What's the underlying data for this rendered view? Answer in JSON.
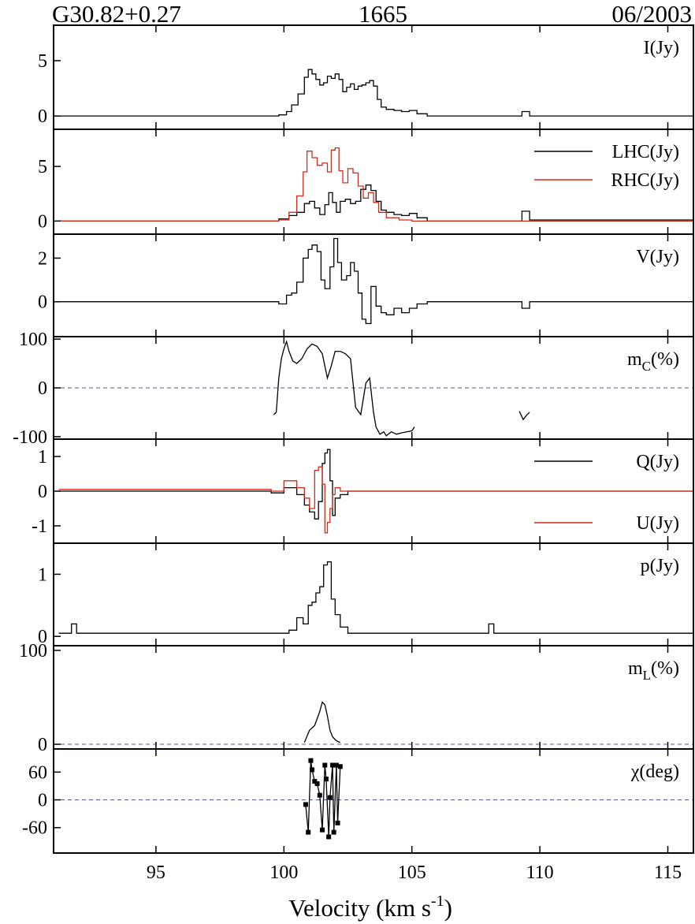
{
  "header": {
    "source": "G30.82+0.27",
    "frequency": "1665",
    "date": "06/2003"
  },
  "colors": {
    "black": "#000000",
    "red": "#d42a1a",
    "zero_line": "#4a5aa8"
  },
  "chart_data": {
    "type": "line",
    "x_axis": {
      "label_main": "Velocity (km s",
      "label_sup": "-1",
      "label_close": ")",
      "xlim": [
        91,
        116
      ],
      "ticks": [
        95,
        100,
        105,
        110,
        115
      ],
      "tick_labels": [
        "95",
        "100",
        "105",
        "110",
        "115"
      ]
    },
    "panels": [
      {
        "id": "I",
        "ylabel": "I(Jy)",
        "ylim": [
          -1.2,
          8.2
        ],
        "yticks": [
          0,
          5
        ],
        "ytick_labels": [
          "0",
          "5"
        ],
        "series": [
          {
            "color": "black",
            "step": true,
            "x": [
              91.2,
              99.8,
              100.1,
              100.3,
              100.55,
              100.8,
              100.95,
              101.1,
              101.25,
              101.4,
              101.55,
              101.7,
              101.85,
              102.0,
              102.15,
              102.3,
              102.45,
              102.6,
              102.75,
              102.9,
              103.05,
              103.2,
              103.35,
              103.5,
              103.65,
              103.8,
              104.0,
              104.3,
              104.6,
              104.9,
              105.2,
              105.6,
              109.0,
              109.3,
              109.6,
              116.0
            ],
            "values": [
              0.0,
              0.1,
              0.4,
              1.0,
              2.0,
              3.5,
              4.2,
              3.8,
              3.3,
              2.8,
              3.0,
              3.6,
              3.4,
              3.8,
              3.3,
              2.2,
              2.6,
              2.9,
              2.4,
              2.7,
              2.8,
              3.0,
              3.2,
              2.7,
              1.5,
              0.8,
              0.6,
              0.5,
              0.4,
              0.5,
              0.2,
              0.0,
              0.0,
              0.4,
              0.0,
              0.0
            ]
          }
        ]
      },
      {
        "id": "LHC_RHC",
        "ylim": [
          -1.2,
          8.4
        ],
        "yticks": [
          0,
          5
        ],
        "ytick_labels": [
          "0",
          "5"
        ],
        "legend": [
          {
            "label": "LHC(Jy)",
            "color": "black"
          },
          {
            "label": "RHC(Jy)",
            "color": "red"
          }
        ],
        "series": [
          {
            "name": "LHC(Jy)",
            "color": "black",
            "step": true,
            "x": [
              91.2,
              99.8,
              100.2,
              100.5,
              100.8,
              101.0,
              101.2,
              101.4,
              101.6,
              101.75,
              101.9,
              102.05,
              102.2,
              102.4,
              102.6,
              102.8,
              103.0,
              103.2,
              103.4,
              103.6,
              103.8,
              104.0,
              104.3,
              104.6,
              104.9,
              105.2,
              105.6,
              109.0,
              109.3,
              109.6,
              116.0
            ],
            "values": [
              0.0,
              0.2,
              0.5,
              0.8,
              1.6,
              1.8,
              1.2,
              0.6,
              1.5,
              2.6,
              1.7,
              0.8,
              1.8,
              2.0,
              1.6,
              1.8,
              2.9,
              3.3,
              2.8,
              1.8,
              1.0,
              0.8,
              0.6,
              0.5,
              0.7,
              0.3,
              0.0,
              0.0,
              0.9,
              0.1,
              0.0
            ]
          },
          {
            "name": "RHC(Jy)",
            "color": "red",
            "step": true,
            "x": [
              91.2,
              99.8,
              100.2,
              100.5,
              100.75,
              100.9,
              101.1,
              101.3,
              101.5,
              101.7,
              101.85,
              102.0,
              102.15,
              102.3,
              102.5,
              102.7,
              102.9,
              103.1,
              103.3,
              103.5,
              103.7,
              104.0,
              104.5,
              105.0,
              116.0
            ],
            "values": [
              0.0,
              0.1,
              0.8,
              2.3,
              4.5,
              6.4,
              5.8,
              5.1,
              5.3,
              4.5,
              6.5,
              6.7,
              4.6,
              3.5,
              4.8,
              4.4,
              3.2,
              2.1,
              2.6,
              1.7,
              0.8,
              0.3,
              0.1,
              0.0,
              0.0
            ]
          }
        ]
      },
      {
        "id": "V",
        "ylabel": "V(Jy)",
        "ylim": [
          -1.6,
          3.1
        ],
        "yticks": [
          0,
          2
        ],
        "ytick_labels": [
          "0",
          "2"
        ],
        "series": [
          {
            "color": "black",
            "step": true,
            "x": [
              91.2,
              99.8,
              100.1,
              100.3,
              100.5,
              100.75,
              100.95,
              101.1,
              101.3,
              101.45,
              101.6,
              101.8,
              101.95,
              102.1,
              102.25,
              102.45,
              102.6,
              102.75,
              102.9,
              103.05,
              103.2,
              103.4,
              103.6,
              103.8,
              104.0,
              104.3,
              104.6,
              104.9,
              105.2,
              105.6,
              109.0,
              109.3,
              109.6,
              116.0
            ],
            "values": [
              0.0,
              -0.1,
              0.3,
              0.4,
              0.9,
              2.0,
              2.4,
              2.6,
              2.3,
              1.0,
              0.6,
              1.6,
              2.9,
              1.8,
              1.0,
              1.2,
              1.8,
              1.4,
              0.4,
              -0.8,
              -1.0,
              0.7,
              -0.2,
              -0.5,
              -0.6,
              -0.3,
              -0.5,
              -0.3,
              -0.1,
              0.0,
              0.0,
              -0.3,
              0.0,
              0.0
            ]
          }
        ]
      },
      {
        "id": "mc",
        "ylabel_main": "m",
        "ylabel_sub": "C",
        "ylabel_tail": "(%)",
        "ylim": [
          -105,
          105
        ],
        "yticks": [
          -100,
          0,
          100
        ],
        "ytick_labels": [
          "-100",
          "0",
          "100"
        ],
        "zero_line": true,
        "series": [
          {
            "color": "black",
            "step": false,
            "x": [
              99.6,
              99.7,
              99.8,
              99.9,
              100.0,
              100.1,
              100.2,
              100.35,
              100.5,
              100.7,
              100.9,
              101.1,
              101.3,
              101.5,
              101.7,
              101.85,
              102.0,
              102.2,
              102.4,
              102.6,
              102.8,
              103.0,
              103.2,
              103.35,
              103.5,
              103.6,
              103.75,
              103.9,
              104.0,
              104.2,
              104.4,
              104.6,
              104.8,
              105.0,
              105.1
            ],
            "values": [
              -55,
              -50,
              20,
              60,
              80,
              95,
              75,
              55,
              50,
              60,
              80,
              90,
              85,
              70,
              20,
              45,
              75,
              75,
              70,
              60,
              -40,
              -55,
              10,
              20,
              -50,
              -80,
              -95,
              -90,
              -98,
              -90,
              -95,
              -92,
              -90,
              -88,
              -80
            ]
          },
          {
            "color": "black",
            "step": false,
            "x": [
              109.2,
              109.35,
              109.5,
              109.6
            ],
            "values": [
              -48,
              -65,
              -55,
              -50
            ]
          }
        ]
      },
      {
        "id": "QU",
        "ylim": [
          -1.5,
          1.5
        ],
        "yticks": [
          -1,
          0,
          1
        ],
        "ytick_labels": [
          "-1",
          "0",
          "1"
        ],
        "legend": [
          {
            "label": "Q(Jy)",
            "color": "black"
          },
          {
            "label": "U(Jy)",
            "color": "red"
          }
        ],
        "series": [
          {
            "name": "Q(Jy)",
            "color": "black",
            "step": true,
            "x": [
              91.2,
              99.5,
              100.0,
              100.5,
              100.8,
              101.0,
              101.2,
              101.35,
              101.5,
              101.6,
              101.7,
              101.8,
              101.9,
              102.0,
              102.2,
              102.5,
              116.0
            ],
            "values": [
              0.0,
              -0.05,
              0.1,
              -0.1,
              -0.4,
              -0.6,
              -0.8,
              -0.3,
              0.8,
              1.1,
              1.2,
              0.3,
              -0.7,
              -0.2,
              -0.1,
              0.0,
              0.0
            ]
          },
          {
            "name": "U(Jy)",
            "color": "red",
            "step": true,
            "x": [
              91.2,
              99.5,
              100.0,
              100.5,
              100.8,
              101.0,
              101.2,
              101.35,
              101.5,
              101.6,
              101.7,
              101.8,
              101.9,
              102.0,
              102.2,
              102.5,
              116.0
            ],
            "values": [
              0.05,
              0.0,
              0.3,
              0.1,
              -0.2,
              -0.5,
              0.6,
              0.7,
              0.2,
              -1.2,
              -0.9,
              -0.5,
              -0.1,
              0.1,
              0.0,
              0.0,
              0.0
            ]
          }
        ]
      },
      {
        "id": "p",
        "ylabel": "p(Jy)",
        "ylim": [
          -0.15,
          1.5
        ],
        "yticks": [
          0,
          1
        ],
        "ytick_labels": [
          "0",
          "1"
        ],
        "series": [
          {
            "color": "black",
            "step": true,
            "x": [
              91.2,
              91.7,
              91.9,
              100.2,
              100.5,
              100.75,
              100.95,
              101.1,
              101.25,
              101.4,
              101.55,
              101.7,
              101.85,
              102.0,
              102.2,
              102.5,
              107.8,
              108.0,
              108.2,
              116.0
            ],
            "values": [
              0.05,
              0.2,
              0.05,
              0.1,
              0.3,
              0.2,
              0.5,
              0.55,
              0.7,
              0.8,
              1.15,
              1.2,
              0.6,
              0.35,
              0.15,
              0.05,
              0.05,
              0.2,
              0.05,
              0.05
            ]
          }
        ]
      },
      {
        "id": "mL",
        "ylabel_main": "m",
        "ylabel_sub": "L",
        "ylabel_tail": "(%)",
        "ylim": [
          -5,
          105
        ],
        "yticks": [
          0,
          100
        ],
        "ytick_labels": [
          "0",
          "100"
        ],
        "zero_line": true,
        "series": [
          {
            "color": "black",
            "step": false,
            "x": [
              100.8,
              101.0,
              101.2,
              101.4,
              101.5,
              101.6,
              101.7,
              101.8,
              101.9,
              102.0,
              102.1,
              102.2
            ],
            "values": [
              2,
              15,
              20,
              35,
              45,
              42,
              30,
              15,
              8,
              5,
              3,
              2
            ]
          }
        ]
      },
      {
        "id": "chi",
        "ylabel": "χ(deg)",
        "ylim": [
          -115,
          110
        ],
        "yticks": [
          -60,
          0,
          60
        ],
        "ytick_labels": [
          "-60",
          "0",
          "60"
        ],
        "zero_line": true,
        "series": [
          {
            "color": "black",
            "step": false,
            "markers": true,
            "x": [
              100.85,
              100.95,
              101.05,
              101.1,
              101.2,
              101.3,
              101.4,
              101.5,
              101.6,
              101.65,
              101.75,
              101.8,
              101.9,
              101.95,
              102.05,
              102.1,
              102.2
            ],
            "values": [
              -10,
              -70,
              85,
              65,
              40,
              35,
              10,
              -65,
              75,
              45,
              -80,
              5,
              75,
              -70,
              75,
              -50,
              72
            ]
          }
        ]
      }
    ]
  }
}
